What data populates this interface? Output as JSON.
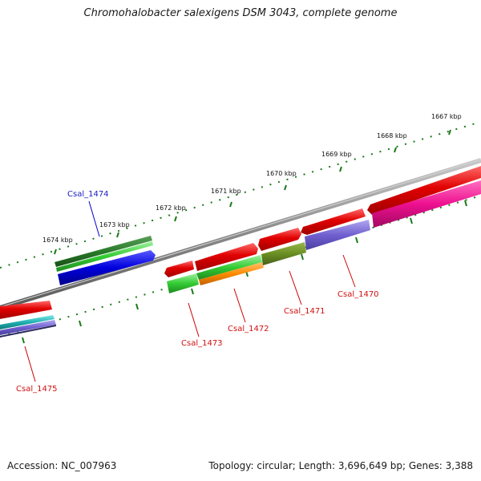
{
  "title": "Chromohalobacter salexigens DSM 3043, complete genome",
  "footer": {
    "accession": "Accession: NC_007963",
    "summary": "Topology: circular; Length: 3,696,649 bp; Genes: 3,388"
  },
  "ruler": [
    {
      "label": "1674 kbp"
    },
    {
      "label": "1673 kbp"
    },
    {
      "label": "1672 kbp"
    },
    {
      "label": "1671 kbp"
    },
    {
      "label": "1670 kbp"
    },
    {
      "label": "1669 kbp"
    },
    {
      "label": "1668 kbp"
    },
    {
      "label": "1667 kbp"
    }
  ],
  "genes": [
    {
      "label": "Csal_1474",
      "color": "#1c1cc0"
    },
    {
      "label": "Csal_1473",
      "color": "#d01010"
    },
    {
      "label": "Csal_1472",
      "color": "#d01010"
    },
    {
      "label": "Csal_1471",
      "color": "#d01010"
    },
    {
      "label": "Csal_1470",
      "color": "#d01010"
    },
    {
      "label": "Csal_1475",
      "color": "#d01010"
    }
  ],
  "colors": {
    "backbone": "#8a8a8a",
    "tick": "#1a7a1a",
    "cds_red": "#e00000",
    "cds_blue": "#0000dd",
    "gene_dark_green": "#2a7a2a",
    "gene_green": "#33cc33",
    "orange": "#ff8c00",
    "olive": "#6b8e23",
    "slate_blue": "#7060d0",
    "magenta": "#ee1090",
    "teal": "#20b0b0"
  }
}
